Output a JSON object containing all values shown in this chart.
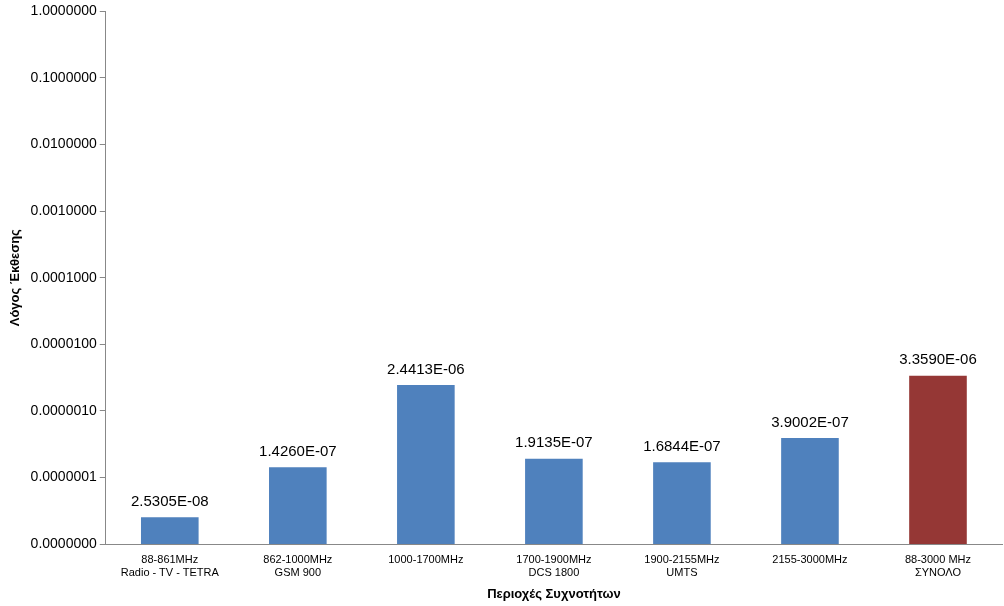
{
  "chart_data": {
    "type": "bar",
    "xlabel": "Περιοχές Συχνοτήτων",
    "ylabel": "Λόγος Έκθεσης",
    "categories": [
      "88-861MHz\nRadio - TV - TETRA",
      "862-1000MHz\nGSM 900",
      "1000-1700MHz",
      "1700-1900MHz\nDCS 1800",
      "1900-2155MHz\nUMTS",
      "2155-3000MHz",
      "88-3000 MHz\nΣΥΝΟΛΟ"
    ],
    "values": [
      2.5305e-08,
      1.426e-07,
      2.4413e-06,
      1.9135e-07,
      1.6844e-07,
      3.9002e-07,
      3.359e-06
    ],
    "colors": [
      "#4f81bd",
      "#4f81bd",
      "#4f81bd",
      "#4f81bd",
      "#4f81bd",
      "#4f81bd",
      "#953735"
    ],
    "value_labels": [
      "2.5305E-08",
      "1.4260E-07",
      "2.4413E-06",
      "1.9135E-07",
      "1.6844E-07",
      "3.9002E-07",
      "3.3590E-06"
    ],
    "log": "y",
    "ylim": [
      1e-08,
      1
    ],
    "yticks": [
      {
        "value": 1e-08,
        "label": "0.0000000"
      },
      {
        "value": 1e-07,
        "label": "0.0000001"
      },
      {
        "value": 1e-06,
        "label": "0.0000010"
      },
      {
        "value": 1e-05,
        "label": "0.0000100"
      },
      {
        "value": 0.0001,
        "label": "0.0001000"
      },
      {
        "value": 0.001,
        "label": "0.0010000"
      },
      {
        "value": 0.01,
        "label": "0.0100000"
      },
      {
        "value": 0.1,
        "label": "0.1000000"
      },
      {
        "value": 1,
        "label": "1.0000000"
      }
    ],
    "grid": false,
    "legend": false
  }
}
